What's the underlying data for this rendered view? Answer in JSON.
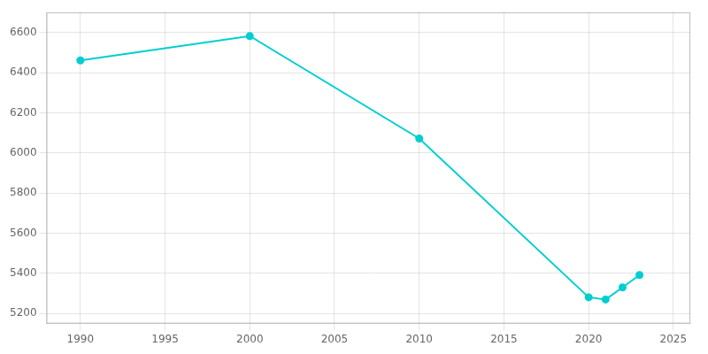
{
  "chart_data": {
    "type": "line",
    "x": [
      1990,
      2000,
      2010,
      2020,
      2021,
      2022,
      2023
    ],
    "values": [
      6461,
      6582,
      6072,
      5281,
      5270,
      5330,
      5392
    ],
    "color": "#00CED1",
    "marker": "circle",
    "line_style": "solid",
    "xlim": [
      1988,
      2026
    ],
    "ylim": [
      5150,
      6700
    ],
    "xticks": [
      1990,
      1995,
      2000,
      2005,
      2010,
      2015,
      2020,
      2025
    ],
    "yticks": [
      5200,
      5400,
      5600,
      5800,
      6000,
      6200,
      6400,
      6600
    ],
    "grid": true
  }
}
